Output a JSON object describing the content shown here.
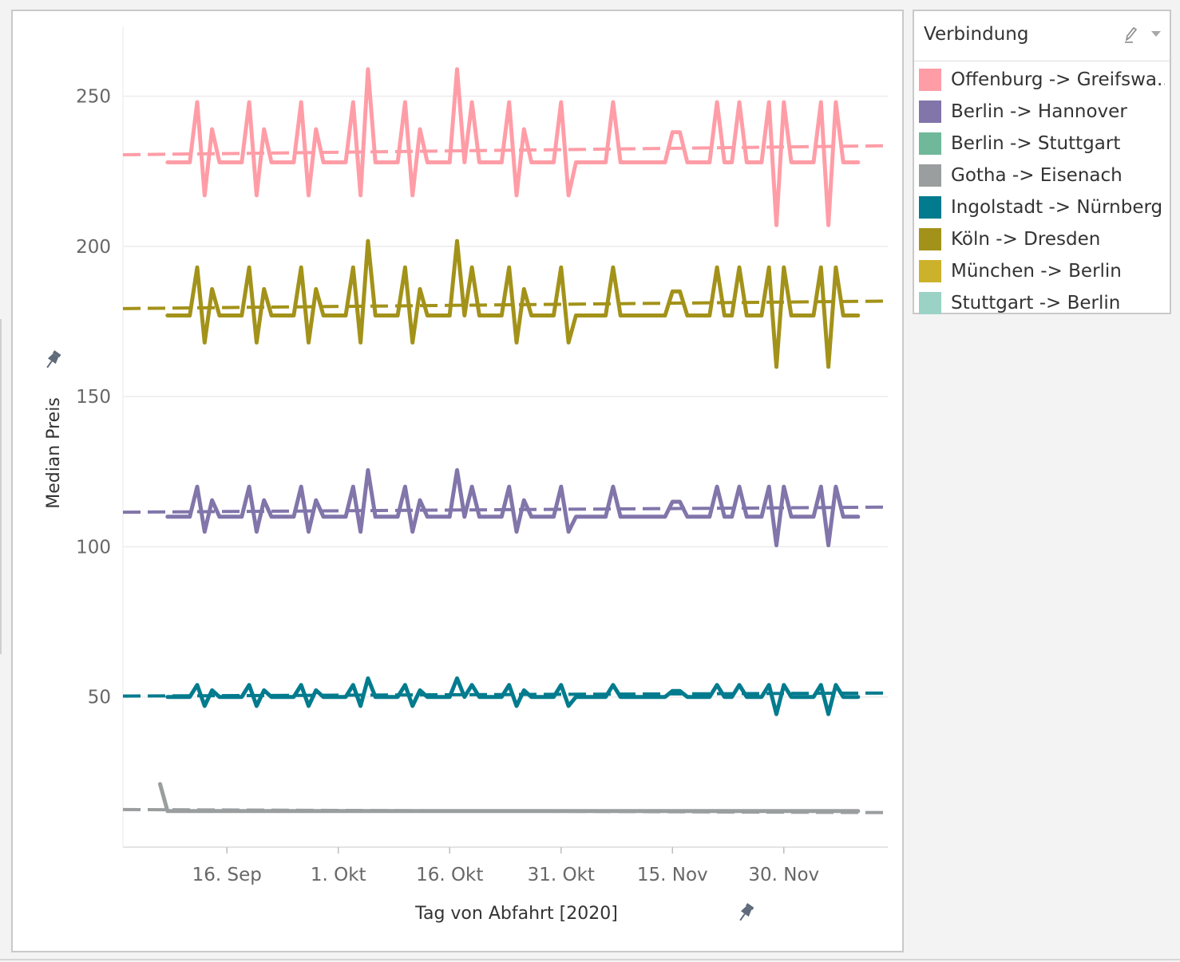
{
  "chart_data": {
    "type": "line",
    "ylabel": "Median Preis",
    "xlabel": "Tag von Abfahrt [2020]",
    "ylim": [
      0,
      273
    ],
    "xlim": [
      "2020-09-02",
      "2020-12-14"
    ],
    "x_ticks": [
      {
        "date": "2020-09-16",
        "label": "16. Sep"
      },
      {
        "date": "2020-10-01",
        "label": "1. Okt"
      },
      {
        "date": "2020-10-16",
        "label": "16. Okt"
      },
      {
        "date": "2020-10-31",
        "label": "31. Okt"
      },
      {
        "date": "2020-11-15",
        "label": "15. Nov"
      },
      {
        "date": "2020-11-30",
        "label": "30. Nov"
      }
    ],
    "y_ticks": [
      50,
      100,
      150,
      200,
      250
    ],
    "grid": true,
    "trend_lines": "dashed linear trend per series",
    "series": [
      {
        "name": "Offenburg -> Greifswa..",
        "color": "#ff9da7",
        "baseline": 228,
        "trend": [
          {
            "date": "2020-09-02",
            "value": 230.5
          },
          {
            "date": "2020-12-14",
            "value": 233.5
          }
        ],
        "extra_points": [],
        "spikes": [],
        "dips": [],
        "plateaus": []
      },
      {
        "name": "Berlin -> Hannover",
        "color": "#8175aa",
        "baseline": 110,
        "trend": [
          {
            "date": "2020-09-02",
            "value": 111.5
          },
          {
            "date": "2020-12-14",
            "value": 113.2
          }
        ],
        "extra_points": [],
        "spikes": [],
        "dips": [],
        "plateaus": []
      },
      {
        "name": "Berlin -> Stuttgart",
        "color": "#6fb899",
        "hidden": true
      },
      {
        "name": "Gotha -> Eisenach",
        "color": "#9b9e9f",
        "baseline": 12,
        "trend": [
          {
            "date": "2020-09-02",
            "value": 12.5
          },
          {
            "date": "2020-12-14",
            "value": 11.5
          }
        ],
        "extra_points": [
          {
            "date": "2020-09-07",
            "value": 21
          }
        ],
        "flat": true
      },
      {
        "name": "Ingolstadt -> Nürnberg",
        "color": "#027b8e",
        "baseline": 50,
        "trend": [
          {
            "date": "2020-09-02",
            "value": 50.3
          },
          {
            "date": "2020-12-14",
            "value": 51.3
          }
        ],
        "extra_points": [],
        "spikes": [],
        "dips": [],
        "plateaus": []
      },
      {
        "name": "Köln -> Dresden",
        "color": "#a39219",
        "baseline": 177,
        "trend": [
          {
            "date": "2020-09-02",
            "value": 179.3
          },
          {
            "date": "2020-12-14",
            "value": 181.8
          }
        ],
        "extra_points": [],
        "spikes": [],
        "dips": [],
        "plateaus": []
      },
      {
        "name": "München -> Berlin",
        "color": "#ccb22b",
        "hidden": true
      },
      {
        "name": "Stuttgart -> Berlin",
        "color": "#9ad3c5",
        "hidden": true
      }
    ],
    "pattern": {
      "start": "2020-09-08",
      "end": "2020-12-10",
      "spikes": [
        {
          "date": "2020-09-12",
          "scale": 1.0
        },
        {
          "date": "2020-09-14",
          "scale": 0.55
        },
        {
          "date": "2020-09-19",
          "scale": 1.0
        },
        {
          "date": "2020-09-21",
          "scale": 0.55
        },
        {
          "date": "2020-09-26",
          "scale": 1.0
        },
        {
          "date": "2020-09-28",
          "scale": 0.55
        },
        {
          "date": "2020-10-03",
          "scale": 1.0
        },
        {
          "date": "2020-10-05",
          "scale": 1.55
        },
        {
          "date": "2020-10-10",
          "scale": 1.0
        },
        {
          "date": "2020-10-12",
          "scale": 0.55
        },
        {
          "date": "2020-10-17",
          "scale": 1.55
        },
        {
          "date": "2020-10-19",
          "scale": 1.0
        },
        {
          "date": "2020-10-24",
          "scale": 1.0
        },
        {
          "date": "2020-10-26",
          "scale": 0.55
        },
        {
          "date": "2020-10-31",
          "scale": 1.0
        },
        {
          "date": "2020-11-07",
          "scale": 1.0
        },
        {
          "date": "2020-11-21",
          "scale": 1.0
        },
        {
          "date": "2020-11-24",
          "scale": 1.0
        },
        {
          "date": "2020-11-28",
          "scale": 1.0
        },
        {
          "date": "2020-11-30",
          "scale": 1.0
        },
        {
          "date": "2020-12-05",
          "scale": 1.0
        },
        {
          "date": "2020-12-07",
          "scale": 1.0
        }
      ],
      "dips": [
        {
          "date": "2020-09-13",
          "scale": 1.0
        },
        {
          "date": "2020-09-20",
          "scale": 1.0
        },
        {
          "date": "2020-09-27",
          "scale": 1.0
        },
        {
          "date": "2020-10-04",
          "scale": 1.0
        },
        {
          "date": "2020-10-11",
          "scale": 1.0
        },
        {
          "date": "2020-10-18",
          "scale": 0.0
        },
        {
          "date": "2020-10-25",
          "scale": 1.0
        },
        {
          "date": "2020-11-01",
          "scale": 1.0
        },
        {
          "date": "2020-11-22",
          "scale": 0.0
        },
        {
          "date": "2020-11-29",
          "scale": 1.9
        },
        {
          "date": "2020-12-06",
          "scale": 1.9
        }
      ],
      "plateaus": [
        {
          "start": "2020-11-15",
          "end": "2020-11-16",
          "scale": 0.5
        }
      ]
    },
    "series_amplitude": {
      "Offenburg -> Greifswa..": {
        "up": 20,
        "down": 11
      },
      "Berlin -> Hannover": {
        "up": 10,
        "down": 5
      },
      "Ingolstadt -> Nürnberg": {
        "up": 4,
        "down": 3
      },
      "Köln -> Dresden": {
        "up": 16,
        "down": 9
      }
    }
  },
  "legend": {
    "title": "Verbindung",
    "items": [
      {
        "label": "Offenburg -> Greifswa..",
        "color": "#ff9da7"
      },
      {
        "label": "Berlin -> Hannover",
        "color": "#8175aa"
      },
      {
        "label": "Berlin -> Stuttgart",
        "color": "#6fb899"
      },
      {
        "label": "Gotha -> Eisenach",
        "color": "#9b9e9f"
      },
      {
        "label": "Ingolstadt -> Nürnberg",
        "color": "#027b8e"
      },
      {
        "label": "Köln -> Dresden",
        "color": "#a39219"
      },
      {
        "label": "München -> Berlin",
        "color": "#ccb22b"
      },
      {
        "label": "Stuttgart -> Berlin",
        "color": "#9ad3c5"
      }
    ]
  },
  "icons": {
    "axis_pin": "pin-icon",
    "legend_edit": "pencil-icon",
    "legend_menu": "dropdown-arrow-icon"
  }
}
